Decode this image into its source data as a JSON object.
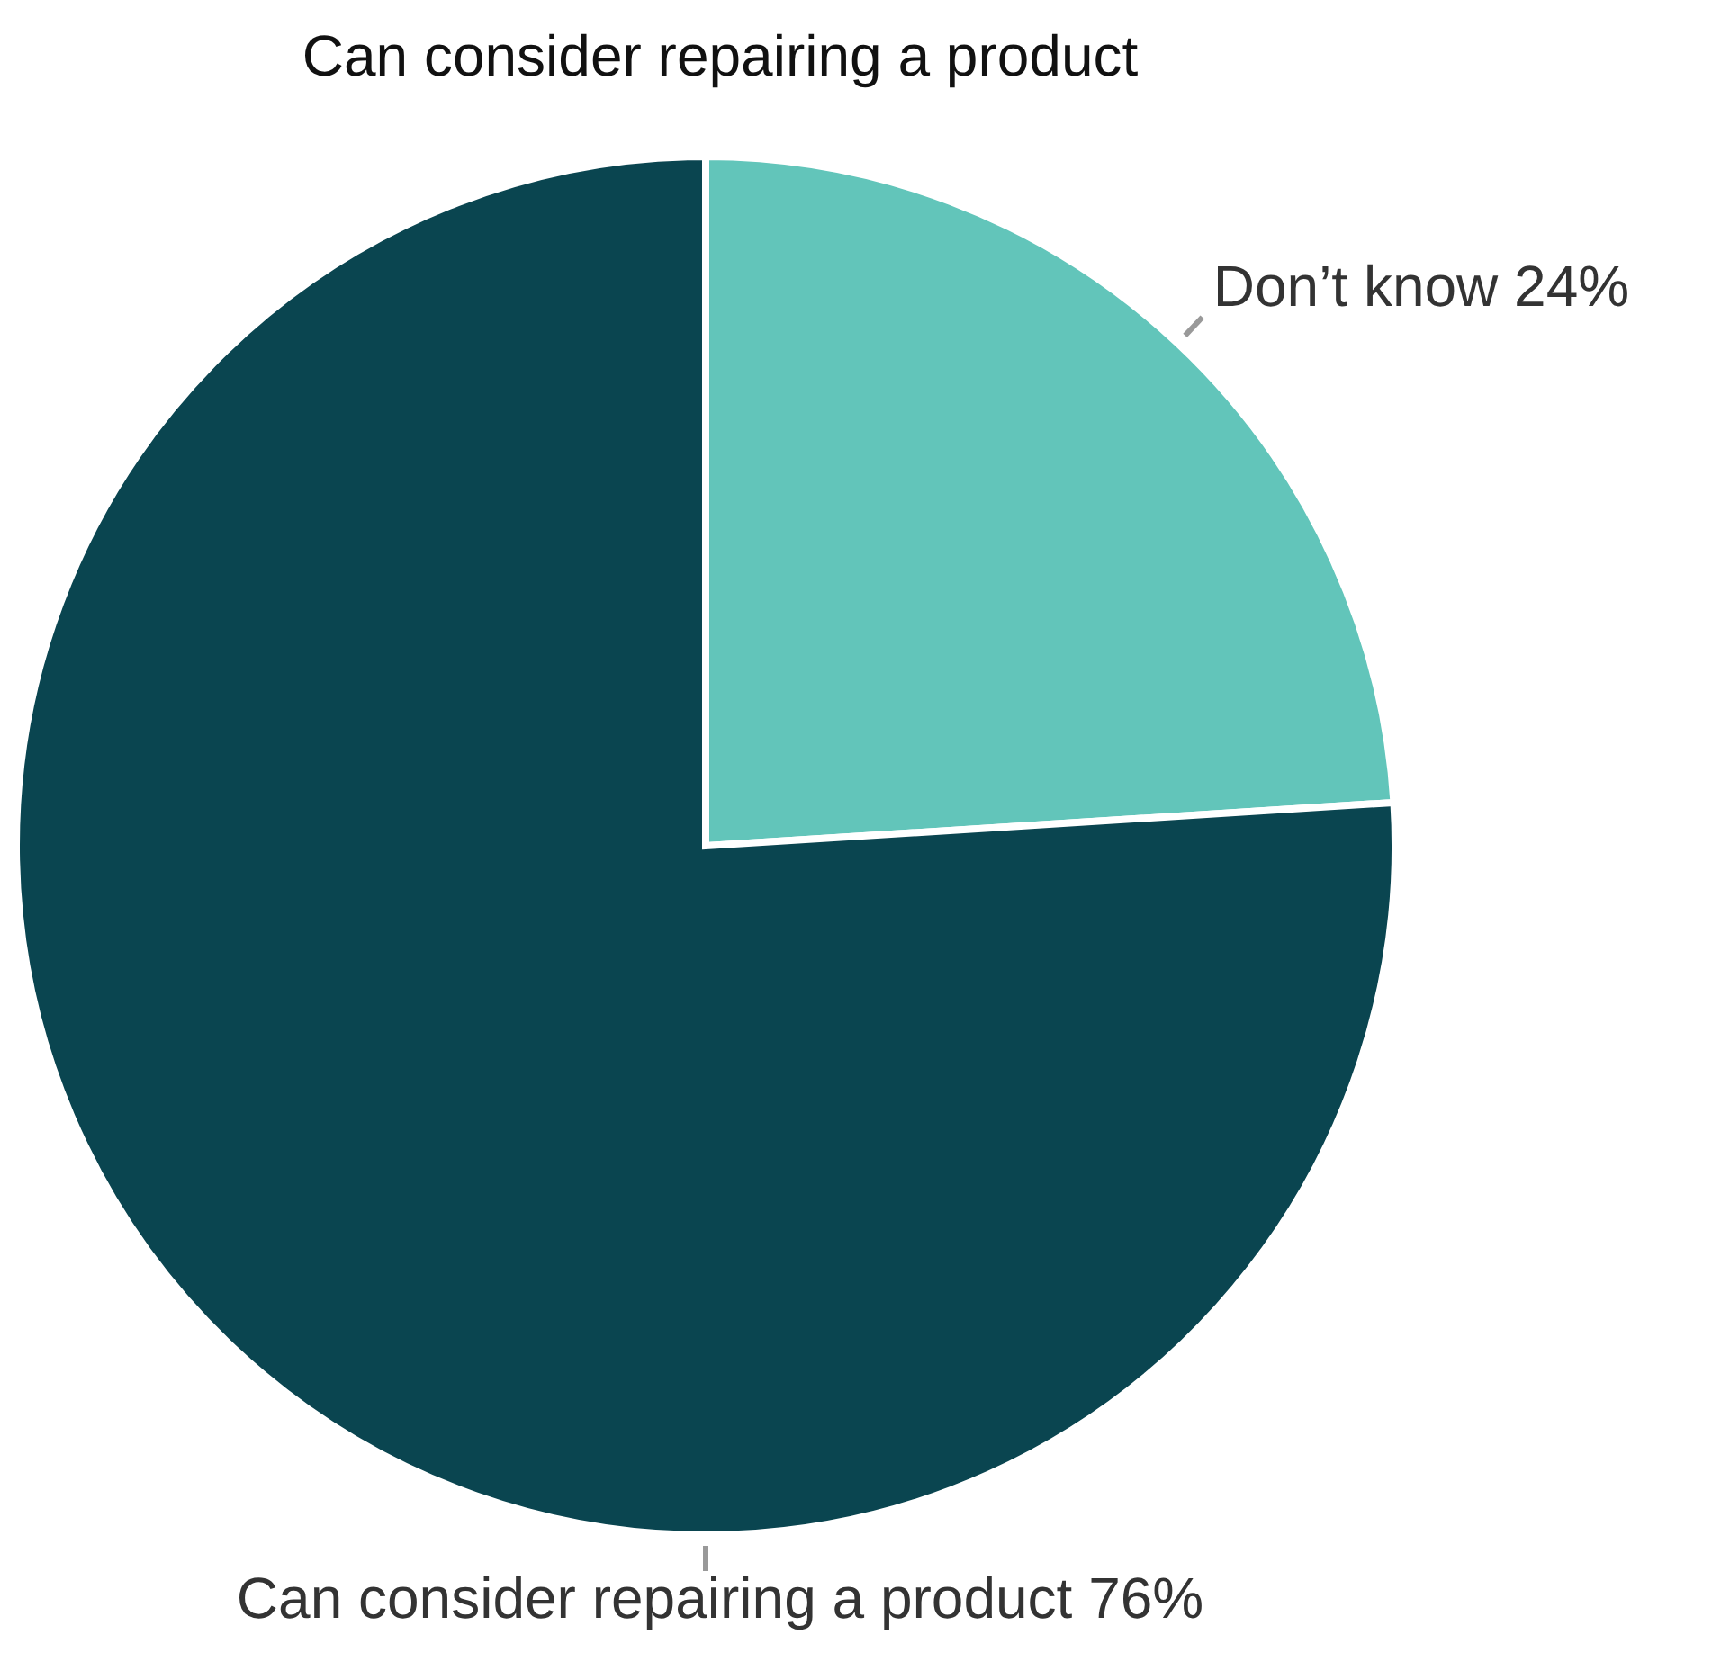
{
  "chart_data": {
    "type": "pie",
    "title": "Can consider repairing a product",
    "categories": [
      "Don’t know",
      "Can consider repairing a product"
    ],
    "values": [
      24,
      76
    ],
    "value_labels": [
      "24%",
      "76%"
    ],
    "colors": [
      "#62c5ba",
      "#0a4550"
    ]
  }
}
